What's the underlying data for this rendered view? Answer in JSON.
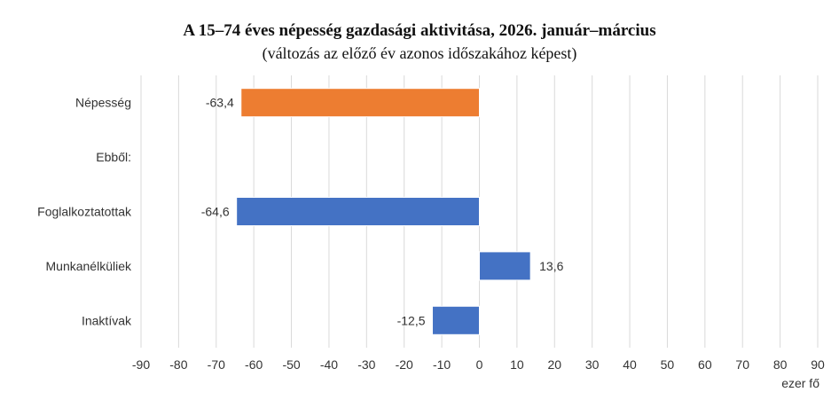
{
  "chart_data": {
    "type": "bar",
    "orientation": "horizontal",
    "title": "A 15–74 éves népesség gazdasági aktivitása, 2026. január–március",
    "subtitle": "(változás az előző év azonos időszakához képest)",
    "xlabel": "ezer fő",
    "ylabel": "",
    "xlim": [
      -90,
      90
    ],
    "xticks": [
      -90,
      -80,
      -70,
      -60,
      -50,
      -40,
      -30,
      -20,
      -10,
      0,
      10,
      20,
      30,
      40,
      50,
      60,
      70,
      80,
      90
    ],
    "grid": true,
    "categories": [
      "Népesség",
      "Ebből:",
      "Foglalkoztatottak",
      "Munkanélküliek",
      "Inaktívak"
    ],
    "values": [
      -63.4,
      null,
      -64.6,
      13.6,
      -12.5
    ],
    "labels": [
      "-63,4",
      "",
      "-64,6",
      "13,6",
      "-12,5"
    ],
    "colors": [
      "#ED7D31",
      null,
      "#4472C4",
      "#4472C4",
      "#4472C4"
    ]
  }
}
